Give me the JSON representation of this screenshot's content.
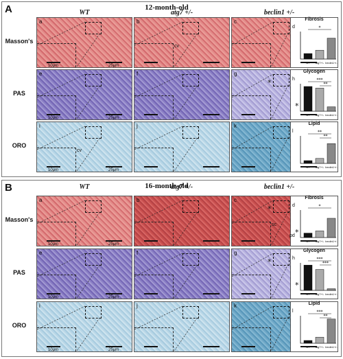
{
  "blocks": [
    {
      "letter": "A",
      "age": "12-month-old",
      "columns": [
        "WT",
        "atg7 +/-",
        "beclin1 +/-"
      ],
      "rows": [
        "Masson's",
        "PAS",
        "ORO"
      ],
      "tiles": [
        {
          "sub": "a",
          "stain": "masson",
          "inset_scale": "10μm",
          "main_scale": "25μm"
        },
        {
          "sub": "b",
          "stain": "masson",
          "tag": "cv"
        },
        {
          "sub": "c",
          "stain": "masson"
        },
        {
          "sub": "e",
          "stain": "pas",
          "inset_scale": "10μm",
          "main_scale": "25μm"
        },
        {
          "sub": "f",
          "stain": "pas"
        },
        {
          "sub": "g",
          "stain": "pas-light",
          "stars": 2
        },
        {
          "sub": "i",
          "stain": "oro",
          "inset_scale": "10μm",
          "main_scale": "25μm",
          "tag": "cv"
        },
        {
          "sub": "j",
          "stain": "oro"
        },
        {
          "sub": "k",
          "stain": "oro-dark"
        }
      ]
    },
    {
      "letter": "B",
      "age": "16-month-old",
      "columns": [
        "WT",
        "atg7 +/-",
        "beclin1 +/-"
      ],
      "rows": [
        "Masson's",
        "PAS",
        "ORO"
      ],
      "tiles": [
        {
          "sub": "a",
          "stain": "masson",
          "inset_scale": "10μm",
          "main_scale": "25μm"
        },
        {
          "sub": "b",
          "stain": "masson-dark"
        },
        {
          "sub": "c",
          "stain": "masson-dark",
          "tag": "sc",
          "tag2": "pd",
          "stars": 2
        },
        {
          "sub": "e",
          "stain": "pas",
          "inset_scale": "10μm",
          "main_scale": "25μm"
        },
        {
          "sub": "f",
          "stain": "pas"
        },
        {
          "sub": "g",
          "stain": "pas-light",
          "stars": 2
        },
        {
          "sub": "i",
          "stain": "oro",
          "inset_scale": "10μm",
          "main_scale": "25μm"
        },
        {
          "sub": "j",
          "stain": "oro"
        },
        {
          "sub": "k",
          "stain": "oro-dark"
        }
      ]
    }
  ],
  "chart_data": [
    {
      "type": "bar",
      "panel": "d",
      "title": "Fibrosis",
      "categories": [
        "WT",
        "atg7+/-",
        "beclin1+/-"
      ],
      "values": [
        1,
        1.6,
        3.8
      ],
      "ylim": [
        0,
        5
      ],
      "sig": [
        "*"
      ],
      "colors": [
        "#111111",
        "#aaaaaa",
        "#888888"
      ]
    },
    {
      "type": "bar",
      "panel": "h",
      "title": "Glycogen",
      "categories": [
        "WT",
        "atg7+/-",
        "beclin1+/-"
      ],
      "values": [
        4.5,
        4.2,
        0.8
      ],
      "ylim": [
        0,
        5
      ],
      "sig": [
        "***",
        "**"
      ],
      "colors": [
        "#111111",
        "#aaaaaa",
        "#888888"
      ]
    },
    {
      "type": "bar",
      "panel": "l",
      "title": "Lipid",
      "categories": [
        "WT",
        "atg7+/-",
        "beclin1+/-"
      ],
      "values": [
        0.5,
        0.9,
        3.6
      ],
      "ylim": [
        0,
        5
      ],
      "sig": [
        "**",
        "**"
      ],
      "colors": [
        "#111111",
        "#aaaaaa",
        "#888888"
      ]
    },
    {
      "type": "bar",
      "panel": "d",
      "title": "Fibrosis",
      "categories": [
        "WT",
        "atg7+/-",
        "beclin1+/-"
      ],
      "values": [
        0.8,
        1.2,
        3.5
      ],
      "ylim": [
        0,
        5
      ],
      "sig": [
        "*"
      ],
      "colors": [
        "#111111",
        "#aaaaaa",
        "#888888"
      ]
    },
    {
      "type": "bar",
      "panel": "h",
      "title": "Glycogen",
      "categories": [
        "WT",
        "atg7+/-",
        "beclin1+/-"
      ],
      "values": [
        4.6,
        3.8,
        0.3
      ],
      "ylim": [
        0,
        5
      ],
      "sig": [
        "***",
        "***"
      ],
      "colors": [
        "#111111",
        "#aaaaaa",
        "#888888"
      ]
    },
    {
      "type": "bar",
      "panel": "l",
      "title": "Lipid",
      "categories": [
        "WT",
        "atg7+/-",
        "beclin1+/-"
      ],
      "values": [
        0.5,
        1.1,
        4.4
      ],
      "ylim": [
        0,
        5
      ],
      "sig": [
        "***",
        "**"
      ],
      "colors": [
        "#111111",
        "#aaaaaa",
        "#888888"
      ]
    }
  ]
}
